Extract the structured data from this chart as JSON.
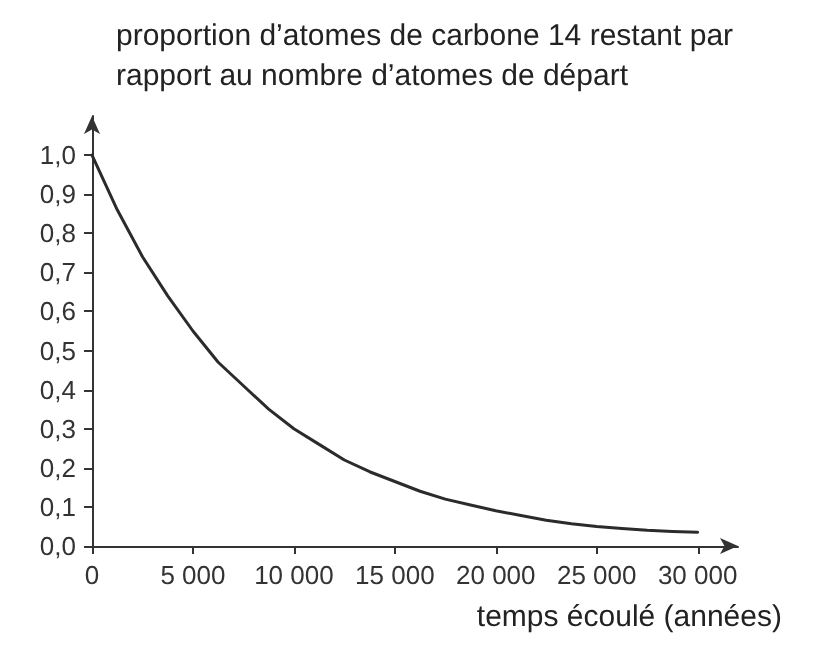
{
  "chart_data": {
    "type": "line",
    "ylabel": "proportion d’atomes de carbone 14 restant par rapport au nombre d’atomes de départ",
    "xlabel": "temps écoulé (années)",
    "x": [
      0,
      1250,
      2500,
      3750,
      5000,
      6250,
      7500,
      8750,
      10000,
      11250,
      12500,
      13750,
      15000,
      16250,
      17500,
      18750,
      20000,
      21250,
      22500,
      23750,
      25000,
      26250,
      27500,
      28750,
      30000
    ],
    "series": [
      {
        "color": "#2b2b2b",
        "values": [
          1.0,
          0.86,
          0.74,
          0.64,
          0.55,
          0.47,
          0.41,
          0.35,
          0.3,
          0.26,
          0.22,
          0.19,
          0.165,
          0.14,
          0.12,
          0.105,
          0.09,
          0.078,
          0.066,
          0.057,
          0.05,
          0.045,
          0.04,
          0.037,
          0.035
        ]
      }
    ],
    "xlim": [
      0,
      32000
    ],
    "ylim": [
      0,
      1.1
    ],
    "xticks": [
      0,
      {
        "value": 5000,
        "label": "5 000"
      },
      {
        "value": 10000,
        "label": "10 000"
      },
      {
        "value": 15000,
        "label": "15 000"
      },
      {
        "value": 20000,
        "label": "20 000"
      },
      {
        "value": 25000,
        "label": "25 000"
      },
      {
        "value": 30000,
        "label": "30 000"
      }
    ],
    "yticks": [
      {
        "value": 0,
        "label": "0,0"
      },
      {
        "value": 0.1,
        "label": "0,1"
      },
      {
        "value": 0.2,
        "label": "0,2"
      },
      {
        "value": 0.3,
        "label": "0,3"
      },
      {
        "value": 0.4,
        "label": "0,4"
      },
      {
        "value": 0.5,
        "label": "0,5"
      },
      {
        "value": 0.6,
        "label": "0,6"
      },
      {
        "value": 0.7,
        "label": "0,7"
      },
      {
        "value": 0.8,
        "label": "0,8"
      },
      {
        "value": 0.9,
        "label": "0,9"
      },
      {
        "value": 1.0,
        "label": "1,0"
      }
    ],
    "grid": false,
    "marker": "none",
    "line_style": "solid"
  }
}
